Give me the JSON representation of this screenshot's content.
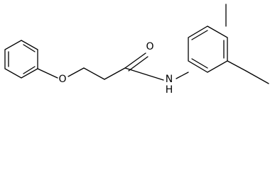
{
  "atoms": {
    "ether_oxygen": "O",
    "carbonyl_oxygen": "O",
    "amide_nitrogen": "N",
    "amide_hydrogen": "H"
  }
}
